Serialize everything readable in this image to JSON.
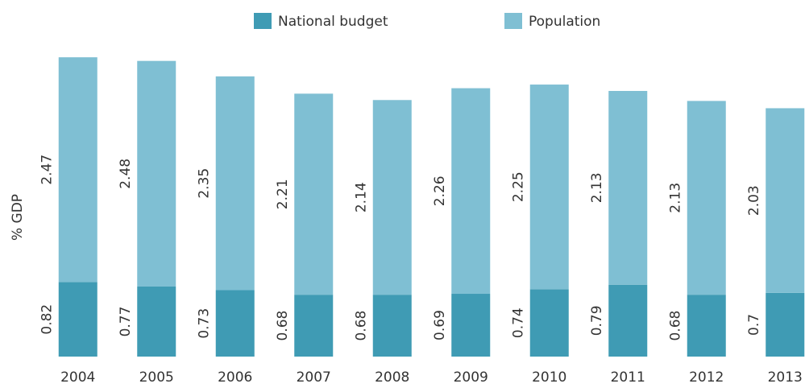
{
  "chart_data": {
    "type": "stacked-bar",
    "y_label": "% GDP",
    "categories": [
      "2004",
      "2005",
      "2006",
      "2007",
      "2008",
      "2009",
      "2010",
      "2011",
      "2012",
      "2013"
    ],
    "series": [
      {
        "name": "National budget",
        "color": "#3f9bb4",
        "values": [
          0.82,
          0.77,
          0.73,
          0.68,
          0.68,
          0.69,
          0.74,
          0.79,
          0.68,
          0.7
        ]
      },
      {
        "name": "Population",
        "color": "#7fbfd3",
        "values": [
          2.47,
          2.48,
          2.35,
          2.21,
          2.14,
          2.26,
          2.25,
          2.13,
          2.13,
          2.03
        ]
      }
    ],
    "legend": "top"
  }
}
